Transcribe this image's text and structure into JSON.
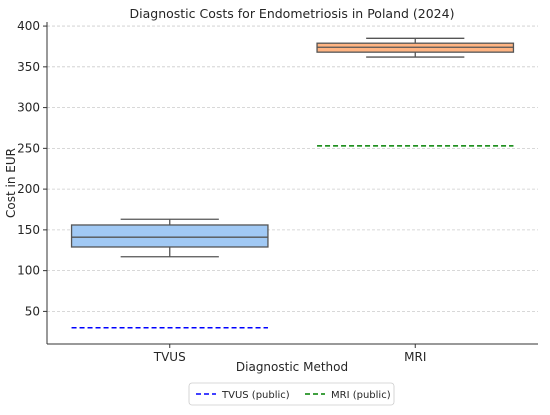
{
  "chart_data": {
    "type": "box",
    "title": "Diagnostic Costs for Endometriosis in Poland (2024)",
    "xlabel": "Diagnostic Method",
    "ylabel": "Cost in EUR",
    "categories": [
      "TVUS",
      "MRI"
    ],
    "ylim": [
      10,
      405
    ],
    "yticks": [
      50,
      100,
      150,
      200,
      250,
      300,
      350,
      400
    ],
    "grid": {
      "y": true,
      "x": false
    },
    "boxes": [
      {
        "category": "TVUS",
        "whisker_low": 117,
        "q1": 129,
        "median": 141,
        "q3": 156,
        "whisker_high": 163,
        "color": "#a1c9f4"
      },
      {
        "category": "MRI",
        "whisker_low": 362,
        "q1": 368,
        "median": 374,
        "q3": 379,
        "whisker_high": 385,
        "color": "#ffb482"
      }
    ],
    "reference_lines": [
      {
        "name": "TVUS (public)",
        "category": "TVUS",
        "value": 30,
        "color": "#0000ff",
        "style": "dashed"
      },
      {
        "name": "MRI (public)",
        "category": "MRI",
        "value": 253,
        "color": "#008000",
        "style": "dashed"
      }
    ],
    "legend": {
      "position": "bottom-center",
      "entries": [
        {
          "label": "TVUS (public)",
          "color": "#0000ff",
          "style": "dashed"
        },
        {
          "label": "MRI (public)",
          "color": "#008000",
          "style": "dashed"
        }
      ]
    }
  }
}
